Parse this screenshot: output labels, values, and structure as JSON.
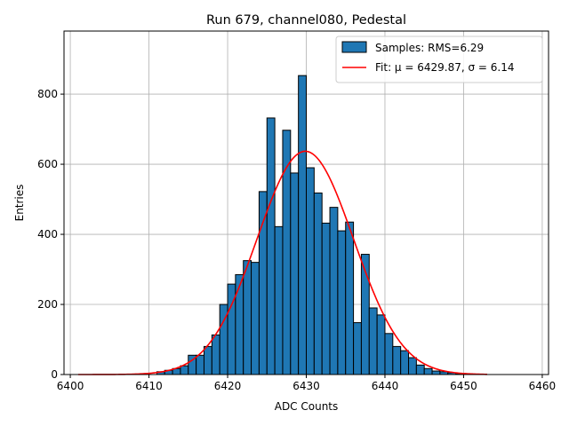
{
  "chart_data": {
    "type": "bar",
    "title": "Run 679, channel080, Pedestal",
    "xlabel": "ADC Counts",
    "ylabel": "Entries",
    "xlim": [
      6399.2,
      6460.8
    ],
    "ylim": [
      0,
      980
    ],
    "xticks": [
      6400,
      6410,
      6420,
      6430,
      6440,
      6450,
      6460
    ],
    "yticks": [
      0,
      200,
      400,
      600,
      800
    ],
    "grid": true,
    "legend_position": "top-right",
    "colors": {
      "bar": "#1f77b4",
      "edge": "#000000",
      "fit": "#ff0000",
      "grid": "#b0b0b0"
    },
    "histogram": {
      "name": "Samples: RMS=6.29",
      "bin_edges": [
        6411,
        6412,
        6413,
        6414,
        6415,
        6416,
        6417,
        6418,
        6419,
        6420,
        6421,
        6422,
        6423,
        6424,
        6425,
        6426,
        6427,
        6428,
        6429,
        6430,
        6431,
        6432,
        6433,
        6434,
        6435,
        6436,
        6437,
        6438,
        6439,
        6440,
        6441,
        6442,
        6443,
        6444,
        6445,
        6446,
        6447,
        6448,
        6449,
        6450,
        6451,
        6452
      ],
      "counts": [
        8,
        12,
        17,
        25,
        55,
        55,
        80,
        113,
        200,
        258,
        285,
        325,
        320,
        522,
        732,
        422,
        697,
        575,
        853,
        590,
        518,
        432,
        477,
        410,
        435,
        148,
        343,
        190,
        170,
        117,
        80,
        68,
        48,
        27,
        17,
        10,
        8,
        5,
        2,
        1,
        1
      ]
    },
    "fit": {
      "name": "Fit: μ = 6429.87, σ = 6.14",
      "mu": 6429.87,
      "sigma": 6.14,
      "amplitude": 637,
      "x_range": [
        6401,
        6453
      ]
    }
  }
}
